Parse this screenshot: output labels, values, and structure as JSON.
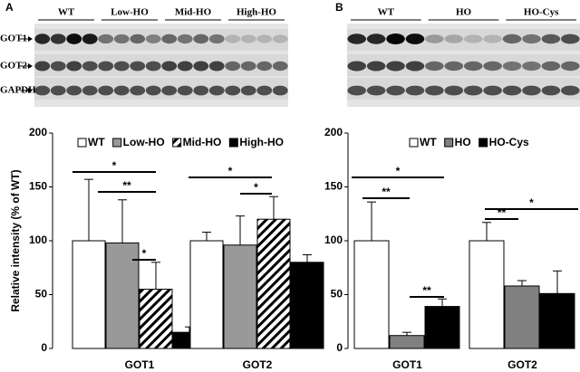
{
  "panel_labels": [
    "A",
    "B"
  ],
  "blots": [
    {
      "groups": [
        "WT",
        "Low-HO",
        "Mid-HO",
        "High-HO"
      ],
      "rows": [
        "GOT1",
        "GOT2",
        "GAPDH"
      ]
    },
    {
      "groups": [
        "WT",
        "HO",
        "HO-Cys"
      ]
    }
  ],
  "chart_data": [
    {
      "type": "bar",
      "y_label": "Relative intensity (% of WT)",
      "categories": [
        "GOT1",
        "GOT2"
      ],
      "ylim": [
        0,
        200
      ],
      "yticks": [
        0,
        50,
        100,
        150,
        200
      ],
      "series": [
        {
          "name": "WT",
          "color": "#ffffff",
          "values": [
            100,
            100
          ],
          "errors": [
            57,
            8
          ]
        },
        {
          "name": "Low-HO",
          "color": "#999999",
          "values": [
            98,
            96
          ],
          "errors": [
            40,
            27
          ]
        },
        {
          "name": "Mid-HO",
          "color": "hatch",
          "values": [
            55,
            120
          ],
          "errors": [
            25,
            21
          ]
        },
        {
          "name": "High-HO",
          "color": "#000000",
          "values": [
            15,
            80
          ],
          "errors": [
            5,
            7
          ]
        }
      ],
      "annotations": [
        "*",
        "**",
        "*",
        "*",
        "*"
      ]
    },
    {
      "type": "bar",
      "categories": [
        "GOT1",
        "GOT2"
      ],
      "ylim": [
        0,
        200
      ],
      "yticks": [
        0,
        50,
        100,
        150,
        200
      ],
      "series": [
        {
          "name": "WT",
          "color": "#ffffff",
          "values": [
            100,
            100
          ],
          "errors": [
            36,
            17
          ]
        },
        {
          "name": "HO",
          "color": "#808080",
          "values": [
            12,
            58
          ],
          "errors": [
            3,
            5
          ]
        },
        {
          "name": "HO-Cys",
          "color": "#000000",
          "values": [
            39,
            51
          ],
          "errors": [
            7,
            21
          ]
        }
      ],
      "annotations": [
        "*",
        "**",
        "**",
        "**",
        "*"
      ]
    }
  ]
}
